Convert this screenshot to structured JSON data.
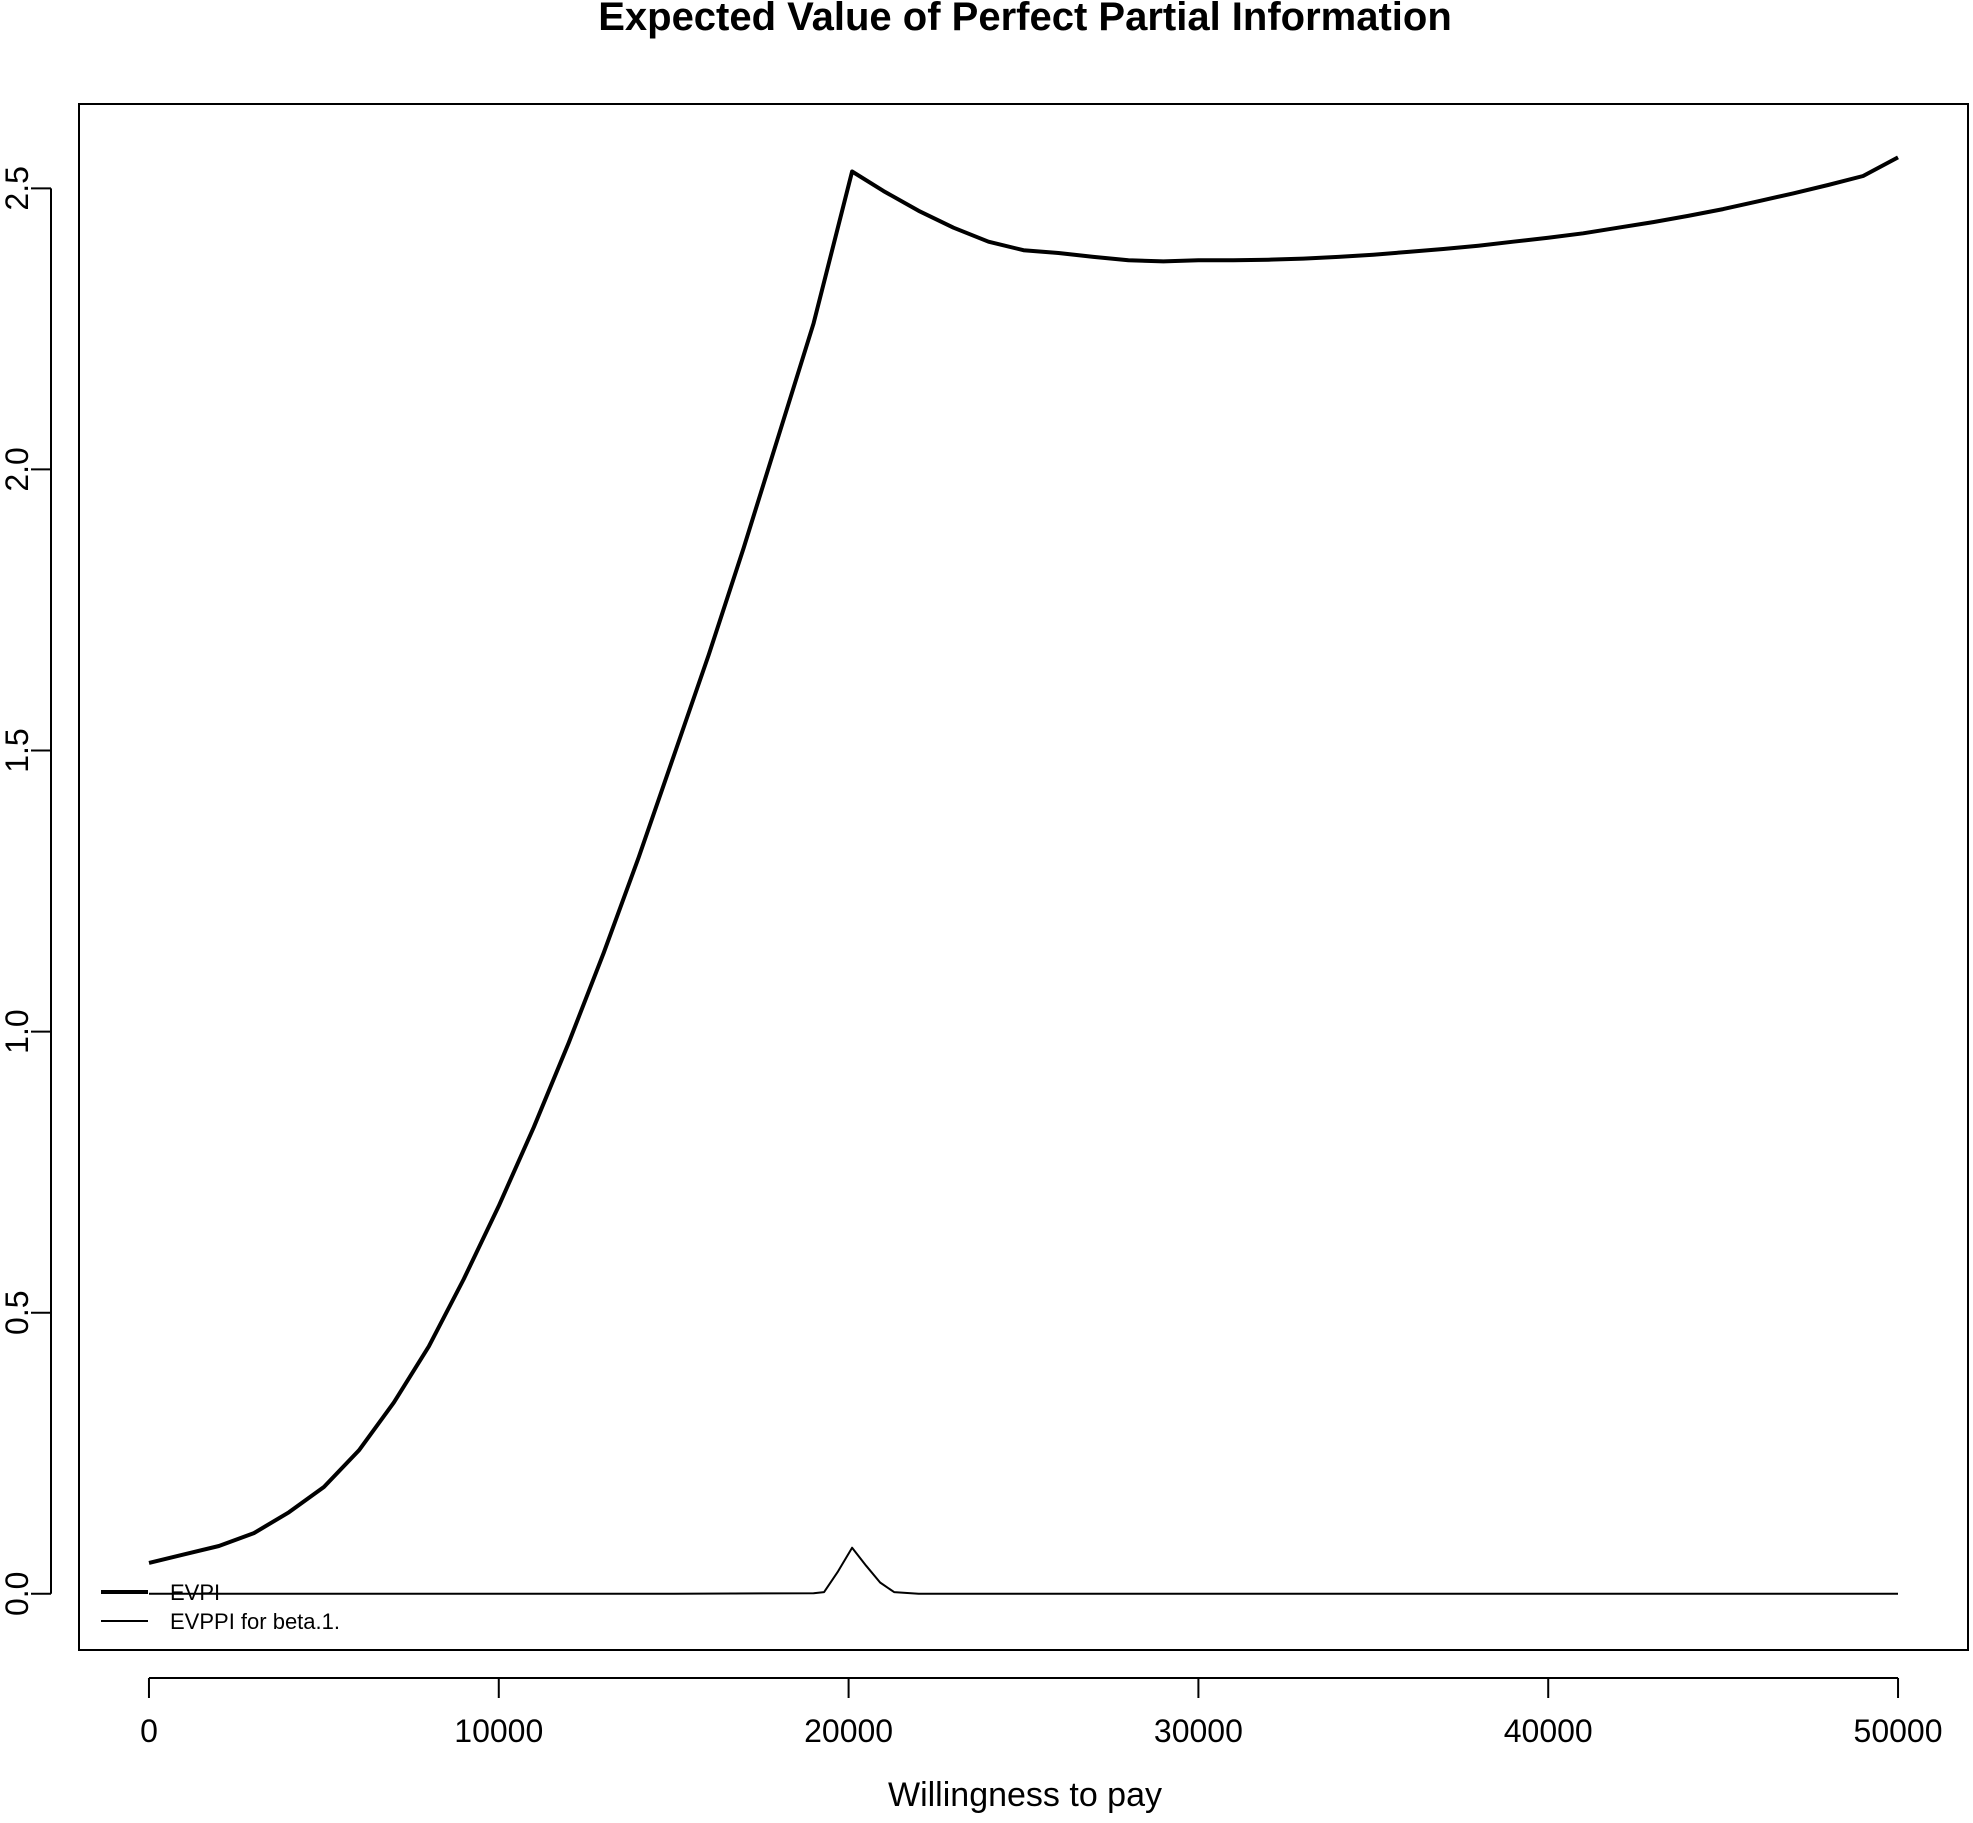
{
  "chart_data": {
    "type": "line",
    "title": "Expected Value of Perfect Partial Information",
    "xlabel": "Willingness to pay",
    "ylabel": "",
    "xlim": [
      -2000,
      52000
    ],
    "ylim": [
      -0.1,
      2.65
    ],
    "x_ticks": [
      0,
      10000,
      20000,
      30000,
      40000,
      50000
    ],
    "x_tick_labels": [
      "0",
      "10000",
      "20000",
      "30000",
      "40000",
      "50000"
    ],
    "y_ticks": [
      0.0,
      0.5,
      1.0,
      1.5,
      2.0,
      2.5
    ],
    "y_tick_labels": [
      "0.0",
      "0.5",
      "1.0",
      "1.5",
      "2.0",
      "2.5"
    ],
    "grid": false,
    "legend_position": "bottom-left",
    "series": [
      {
        "name": "EVPI",
        "line_width": "thick",
        "color": "#000000",
        "x": [
          0,
          1000,
          2000,
          3000,
          4000,
          5000,
          6000,
          7000,
          8000,
          9000,
          10000,
          11000,
          12000,
          13000,
          14000,
          15000,
          16000,
          17000,
          18000,
          19000,
          20100,
          21000,
          22000,
          23000,
          24000,
          25000,
          26000,
          27000,
          28000,
          29000,
          30000,
          31000,
          32000,
          33000,
          34000,
          35000,
          36000,
          37000,
          38000,
          39000,
          40000,
          41000,
          42000,
          43000,
          44000,
          45000,
          46000,
          47000,
          48000,
          49000,
          50000
        ],
        "values": [
          0.055,
          0.07,
          0.085,
          0.108,
          0.145,
          0.19,
          0.255,
          0.34,
          0.44,
          0.56,
          0.69,
          0.83,
          0.98,
          1.14,
          1.31,
          1.49,
          1.67,
          1.86,
          2.06,
          2.26,
          2.53,
          2.495,
          2.46,
          2.43,
          2.405,
          2.39,
          2.385,
          2.378,
          2.372,
          2.37,
          2.372,
          2.372,
          2.373,
          2.375,
          2.378,
          2.382,
          2.387,
          2.392,
          2.398,
          2.405,
          2.412,
          2.42,
          2.43,
          2.44,
          2.451,
          2.463,
          2.477,
          2.491,
          2.506,
          2.522,
          2.555
        ]
      },
      {
        "name": "EVPPI for beta.1.",
        "line_width": "thin",
        "color": "#000000",
        "x": [
          0,
          5000,
          10000,
          15000,
          19000,
          19300,
          19700,
          20100,
          20500,
          20900,
          21300,
          22000,
          25000,
          30000,
          35000,
          40000,
          45000,
          50000
        ],
        "values": [
          0,
          0,
          0,
          0,
          0.001,
          0.003,
          0.04,
          0.082,
          0.05,
          0.02,
          0.003,
          0,
          0,
          0,
          0,
          0,
          0,
          0
        ]
      }
    ]
  }
}
